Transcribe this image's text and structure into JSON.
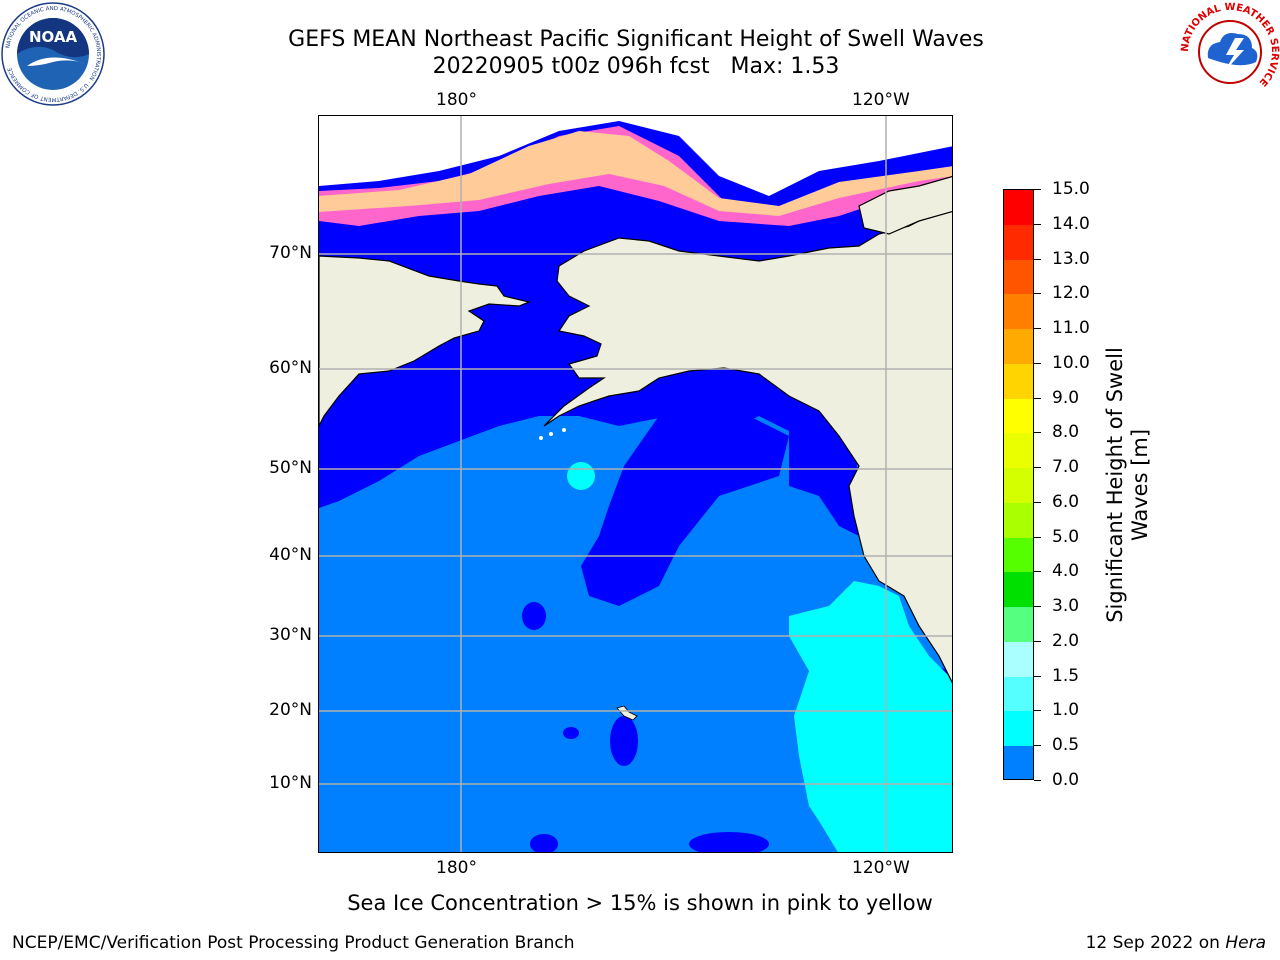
{
  "header": {
    "title_line1": "GEFS MEAN Northeast Pacific Significant Height of Swell Waves",
    "title_line2": "20220905 t00z 096h fcst   Max: 1.53"
  },
  "logos": {
    "left": {
      "name": "NOAA",
      "text": "NOAA",
      "ring_text": "NATIONAL OCEANIC AND ATMOSPHERIC ADMINISTRATION · U.S. DEPARTMENT OF COMMERCE"
    },
    "right": {
      "name": "National Weather Service",
      "ring_text": "NATIONAL WEATHER SERVICE"
    }
  },
  "map": {
    "lon_labels_top": [
      "180°",
      "120°W"
    ],
    "lon_labels_bottom": [
      "180°",
      "120°W"
    ],
    "lat_labels": [
      "70°N",
      "60°N",
      "50°N",
      "40°N",
      "30°N",
      "20°N",
      "10°N"
    ],
    "colors": {
      "ocean_low": "#0000ff",
      "ocean_mid": "#007fff",
      "ocean_high": "#00ffff",
      "land": "#efefdf",
      "grid": "#b0b0b0",
      "ice": "#ff66cc"
    }
  },
  "colorbar": {
    "title": "Significant Height of Swell Waves [m]",
    "tick_labels": [
      "15.0",
      "14.0",
      "13.0",
      "12.0",
      "11.0",
      "10.0",
      "9.0",
      "8.0",
      "7.0",
      "6.0",
      "5.0",
      "4.0",
      "3.0",
      "2.0",
      "1.5",
      "1.0",
      "0.5",
      "0.0"
    ],
    "colors": [
      "#ff0000",
      "#ff2a00",
      "#ff5500",
      "#ff7f00",
      "#ffaa00",
      "#ffd400",
      "#ffff00",
      "#eaff00",
      "#d4ff00",
      "#aaff00",
      "#55ff00",
      "#00e000",
      "#55ff80",
      "#aaffff",
      "#55ffff",
      "#00ffff",
      "#007fff",
      "#0000ff"
    ]
  },
  "caption": "Sea Ice Concentration > 15% is shown in pink to yellow",
  "footer": {
    "left": "NCEP/EMC/Verification Post Processing Product Generation Branch",
    "right_prefix": "12 Sep 2022 on ",
    "right_host": "Hera"
  }
}
